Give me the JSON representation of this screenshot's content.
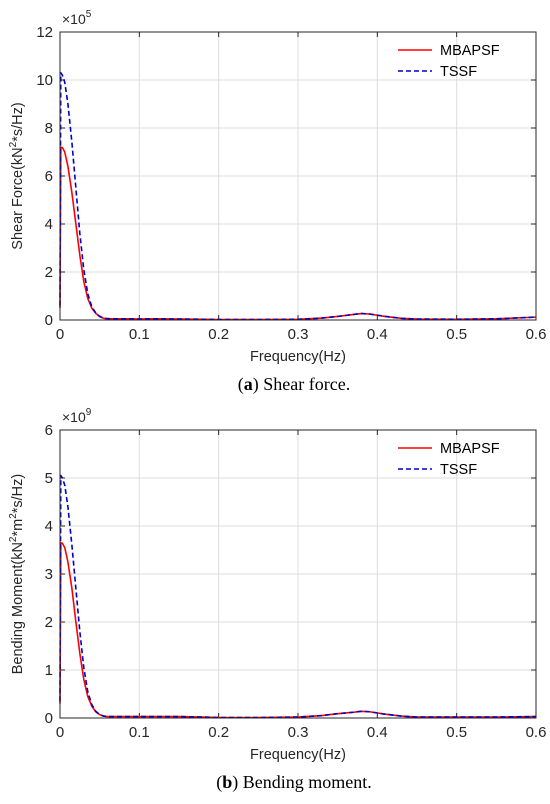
{
  "chart_data": [
    {
      "type": "line",
      "panel_letter": "a",
      "caption_text": " Shear force.",
      "xlabel": "Frequency(Hz)",
      "ylabel_parts": [
        "Shear Force(kN",
        "2",
        "*s/Hz)"
      ],
      "exponent_base": "×10",
      "exponent_power": "5",
      "xlim": [
        0,
        0.6
      ],
      "ylim": [
        0,
        12
      ],
      "xticks": [
        "0",
        "0.1",
        "0.2",
        "0.3",
        "0.4",
        "0.5",
        "0.6"
      ],
      "yticks": [
        "0",
        "2",
        "4",
        "6",
        "8",
        "10",
        "12"
      ],
      "grid": true,
      "legend_position": "top-right",
      "series": [
        {
          "name": "MBAPSF",
          "color": "#ff0000",
          "dash": "solid",
          "x": [
            0,
            0.001,
            0.003,
            0.006,
            0.01,
            0.015,
            0.02,
            0.025,
            0.03,
            0.035,
            0.04,
            0.045,
            0.05,
            0.055,
            0.06,
            0.07,
            0.08,
            0.1,
            0.12,
            0.15,
            0.18,
            0.2,
            0.25,
            0.3,
            0.33,
            0.35,
            0.37,
            0.38,
            0.39,
            0.41,
            0.43,
            0.45,
            0.5,
            0.55,
            0.6
          ],
          "y": [
            0.5,
            7.2,
            7.18,
            7.0,
            6.4,
            5.3,
            4.0,
            2.7,
            1.6,
            0.9,
            0.5,
            0.28,
            0.14,
            0.07,
            0.05,
            0.05,
            0.05,
            0.04,
            0.05,
            0.04,
            0.03,
            0.02,
            0.02,
            0.03,
            0.08,
            0.15,
            0.23,
            0.27,
            0.25,
            0.15,
            0.07,
            0.04,
            0.03,
            0.05,
            0.12
          ]
        },
        {
          "name": "TSSF",
          "color": "#0000cc",
          "dash": "dashed",
          "x": [
            0,
            0.001,
            0.003,
            0.006,
            0.01,
            0.015,
            0.02,
            0.025,
            0.03,
            0.035,
            0.04,
            0.045,
            0.05,
            0.055,
            0.06,
            0.07,
            0.08,
            0.1,
            0.12,
            0.15,
            0.18,
            0.2,
            0.25,
            0.3,
            0.33,
            0.35,
            0.37,
            0.38,
            0.39,
            0.41,
            0.43,
            0.45,
            0.5,
            0.55,
            0.6
          ],
          "y": [
            0.6,
            10.3,
            10.2,
            9.9,
            9.0,
            7.4,
            5.5,
            3.6,
            2.1,
            1.1,
            0.55,
            0.3,
            0.15,
            0.08,
            0.06,
            0.05,
            0.05,
            0.04,
            0.05,
            0.04,
            0.03,
            0.02,
            0.02,
            0.03,
            0.08,
            0.15,
            0.23,
            0.27,
            0.25,
            0.15,
            0.07,
            0.04,
            0.03,
            0.05,
            0.12
          ]
        }
      ]
    },
    {
      "type": "line",
      "panel_letter": "b",
      "caption_text": " Bending moment.",
      "xlabel": "Frequency(Hz)",
      "ylabel_parts": [
        "Bending Moment(kN",
        "2",
        "*m",
        "2",
        "*s/Hz)"
      ],
      "exponent_base": "×10",
      "exponent_power": "9",
      "xlim": [
        0,
        0.6
      ],
      "ylim": [
        0,
        6
      ],
      "xticks": [
        "0",
        "0.1",
        "0.2",
        "0.3",
        "0.4",
        "0.5",
        "0.6"
      ],
      "yticks": [
        "0",
        "1",
        "2",
        "3",
        "4",
        "5",
        "6"
      ],
      "grid": true,
      "legend_position": "top-right",
      "series": [
        {
          "name": "MBAPSF",
          "color": "#ff0000",
          "dash": "solid",
          "x": [
            0,
            0.001,
            0.003,
            0.006,
            0.01,
            0.015,
            0.02,
            0.025,
            0.03,
            0.035,
            0.04,
            0.045,
            0.05,
            0.055,
            0.06,
            0.07,
            0.08,
            0.1,
            0.12,
            0.15,
            0.18,
            0.2,
            0.25,
            0.3,
            0.33,
            0.35,
            0.37,
            0.38,
            0.39,
            0.41,
            0.43,
            0.45,
            0.5,
            0.55,
            0.6
          ],
          "y": [
            0.3,
            3.65,
            3.64,
            3.55,
            3.25,
            2.7,
            2.0,
            1.35,
            0.8,
            0.45,
            0.25,
            0.13,
            0.07,
            0.04,
            0.03,
            0.03,
            0.03,
            0.03,
            0.03,
            0.03,
            0.02,
            0.01,
            0.01,
            0.02,
            0.05,
            0.09,
            0.12,
            0.14,
            0.13,
            0.08,
            0.04,
            0.02,
            0.02,
            0.02,
            0.03
          ]
        },
        {
          "name": "TSSF",
          "color": "#0000cc",
          "dash": "dashed",
          "x": [
            0,
            0.001,
            0.003,
            0.006,
            0.01,
            0.015,
            0.02,
            0.025,
            0.03,
            0.035,
            0.04,
            0.045,
            0.05,
            0.055,
            0.06,
            0.07,
            0.08,
            0.1,
            0.12,
            0.15,
            0.18,
            0.2,
            0.25,
            0.3,
            0.33,
            0.35,
            0.37,
            0.38,
            0.39,
            0.41,
            0.43,
            0.45,
            0.5,
            0.55,
            0.6
          ],
          "y": [
            0.35,
            5.05,
            5.0,
            4.85,
            4.4,
            3.6,
            2.7,
            1.8,
            1.05,
            0.55,
            0.28,
            0.14,
            0.07,
            0.04,
            0.03,
            0.03,
            0.03,
            0.03,
            0.03,
            0.03,
            0.02,
            0.01,
            0.01,
            0.02,
            0.05,
            0.09,
            0.12,
            0.14,
            0.13,
            0.08,
            0.04,
            0.02,
            0.02,
            0.02,
            0.03
          ]
        }
      ]
    }
  ]
}
